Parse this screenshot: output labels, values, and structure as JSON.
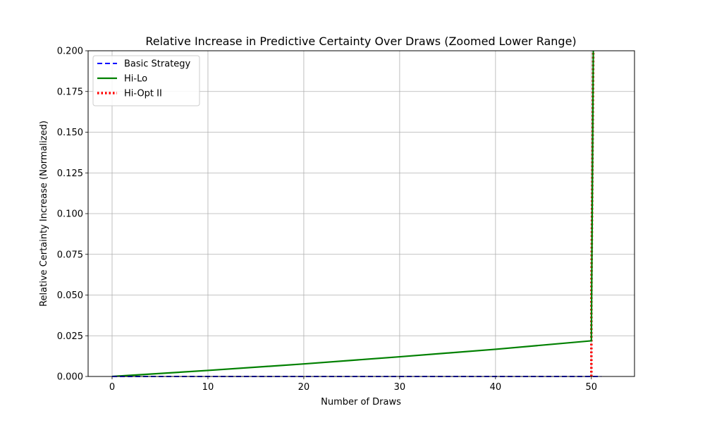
{
  "chart_data": {
    "type": "line",
    "title": "Relative Increase in Predictive Certainty Over Draws (Zoomed Lower Range)",
    "xlabel": "Number of Draws",
    "ylabel": "Relative Certainty Increase (Normalized)",
    "xlim": [
      -2.5,
      54.5
    ],
    "ylim": [
      0,
      0.2
    ],
    "xticks": [
      0,
      10,
      20,
      30,
      40,
      50
    ],
    "xtick_labels": [
      "0",
      "10",
      "20",
      "30",
      "40",
      "50"
    ],
    "yticks": [
      0,
      0.025,
      0.05,
      0.075,
      0.1,
      0.125,
      0.15,
      0.175,
      0.2
    ],
    "ytick_labels": [
      "0.000",
      "0.025",
      "0.050",
      "0.075",
      "0.100",
      "0.125",
      "0.150",
      "0.175",
      "0.200"
    ],
    "grid": true,
    "legend_position": "top-left",
    "series": [
      {
        "name": "Basic Strategy",
        "color": "#0000ff",
        "style": "dashed",
        "x": [
          0,
          50,
          51
        ],
        "y": [
          0,
          0,
          0
        ]
      },
      {
        "name": "Hi-Lo",
        "color": "#008000",
        "style": "solid",
        "x": [
          0,
          10,
          20,
          30,
          40,
          50,
          50,
          50.2
        ],
        "y": [
          0,
          0.0037,
          0.0077,
          0.0121,
          0.0167,
          0.0219,
          0.025,
          0.2
        ]
      },
      {
        "name": "Hi-Opt II",
        "color": "#ff0000",
        "style": "dotted",
        "x": [
          50,
          50,
          50.2
        ],
        "y": [
          0,
          0.05,
          0.2
        ]
      }
    ]
  }
}
